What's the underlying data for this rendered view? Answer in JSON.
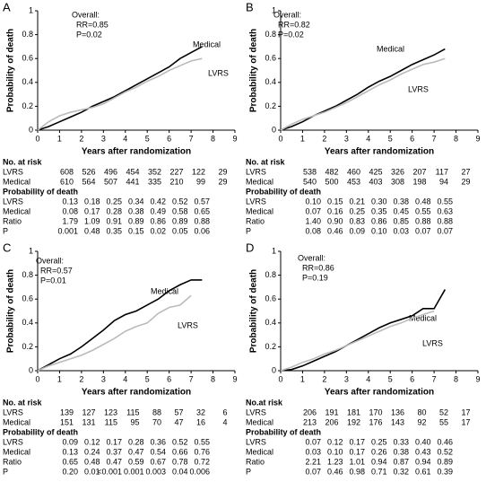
{
  "chart_data": [
    {
      "type": "line",
      "title": "A",
      "annotations": [
        "Overall:",
        "RR=0.85",
        "P=0.02"
      ],
      "xlabel": "Years after randomization",
      "ylabel": "Probability of death",
      "x": [
        0,
        0.5,
        1,
        1.5,
        2,
        2.5,
        3,
        3.5,
        4,
        4.5,
        5,
        5.5,
        6,
        6.5,
        7,
        7.5
      ],
      "series": [
        {
          "name": "Medical",
          "color": "#000000",
          "values": [
            0,
            0.03,
            0.07,
            0.11,
            0.15,
            0.2,
            0.24,
            0.28,
            0.33,
            0.38,
            0.43,
            0.48,
            0.53,
            0.6,
            0.65,
            0.7
          ]
        },
        {
          "name": "LVRS",
          "color": "#bbbbbb",
          "values": [
            0,
            0.07,
            0.12,
            0.15,
            0.17,
            0.19,
            0.22,
            0.27,
            0.32,
            0.36,
            0.41,
            0.45,
            0.5,
            0.54,
            0.58,
            0.6
          ]
        }
      ],
      "xlim": [
        0,
        9
      ],
      "ylim": [
        0,
        1
      ],
      "xticks": [
        0,
        1,
        2,
        3,
        4,
        5,
        6,
        7,
        8,
        9
      ],
      "yticks": [
        0,
        0.2,
        0.4,
        0.6,
        0.8,
        1
      ],
      "risk_table": {
        "title": "No. at risk",
        "rows": [
          {
            "label": "LVRS",
            "values": [
              "608",
              "526",
              "496",
              "454",
              "352",
              "227",
              "122",
              "29"
            ]
          },
          {
            "label": "Medical",
            "values": [
              "610",
              "564",
              "507",
              "441",
              "335",
              "210",
              "99",
              "29"
            ]
          }
        ]
      },
      "probability_table": {
        "title": "Probability of death",
        "rows": [
          {
            "label": "LVRS",
            "values": [
              "0.13",
              "0.18",
              "0.25",
              "0.34",
              "0.42",
              "0.52",
              "0.57"
            ]
          },
          {
            "label": "Medical",
            "values": [
              "0.08",
              "0.17",
              "0.28",
              "0.38",
              "0.49",
              "0.58",
              "0.65"
            ]
          },
          {
            "label": "Ratio",
            "values": [
              "1.79",
              "1.09",
              "0.91",
              "0.89",
              "0.86",
              "0.89",
              "0.88"
            ]
          },
          {
            "label": "P",
            "values": [
              "0.001",
              "0.48",
              "0.35",
              "0.15",
              "0.02",
              "0.05",
              "0.06"
            ]
          }
        ]
      }
    },
    {
      "type": "line",
      "title": "B",
      "annotations": [
        "Overall:",
        "RR=0.82",
        "P=0.02"
      ],
      "xlabel": "Years after randomization",
      "ylabel": "Probability of death",
      "x": [
        0,
        0.5,
        1,
        1.5,
        2,
        2.5,
        3,
        3.5,
        4,
        4.5,
        5,
        5.5,
        6,
        6.5,
        7,
        7.5
      ],
      "series": [
        {
          "name": "Medical",
          "color": "#000000",
          "values": [
            0,
            0.03,
            0.07,
            0.12,
            0.16,
            0.2,
            0.25,
            0.3,
            0.36,
            0.41,
            0.45,
            0.5,
            0.55,
            0.59,
            0.63,
            0.68
          ]
        },
        {
          "name": "LVRS",
          "color": "#bbbbbb",
          "values": [
            0,
            0.05,
            0.09,
            0.12,
            0.15,
            0.19,
            0.23,
            0.28,
            0.33,
            0.38,
            0.42,
            0.47,
            0.51,
            0.55,
            0.57,
            0.6
          ]
        }
      ],
      "xlim": [
        0,
        9
      ],
      "ylim": [
        0,
        1
      ],
      "xticks": [
        0,
        1,
        2,
        3,
        4,
        5,
        6,
        7,
        8,
        9
      ],
      "yticks": [
        0,
        0.2,
        0.4,
        0.6,
        0.8,
        1
      ],
      "risk_table": {
        "title": "No. at risk",
        "rows": [
          {
            "label": "LVRS",
            "values": [
              "538",
              "482",
              "460",
              "425",
              "326",
              "207",
              "117",
              "27"
            ]
          },
          {
            "label": "Medical",
            "values": [
              "540",
              "500",
              "453",
              "403",
              "308",
              "198",
              "94",
              "29"
            ]
          }
        ]
      },
      "probability_table": {
        "title": "Probability of death",
        "rows": [
          {
            "label": "LVRS",
            "values": [
              "0.10",
              "0.15",
              "0.21",
              "0.30",
              "0.38",
              "0.48",
              "0.55"
            ]
          },
          {
            "label": "Medical",
            "values": [
              "0.07",
              "0.16",
              "0.25",
              "0.35",
              "0.45",
              "0.55",
              "0.63"
            ]
          },
          {
            "label": "Ratio",
            "values": [
              "1.40",
              "0.90",
              "0.83",
              "0.86",
              "0.85",
              "0.88",
              "0.88"
            ]
          },
          {
            "label": "P",
            "values": [
              "0.08",
              "0.46",
              "0.09",
              "0.10",
              "0.03",
              "0.07",
              "0.07"
            ]
          }
        ]
      }
    },
    {
      "type": "line",
      "title": "C",
      "annotations": [
        "Overall:",
        "RR=0.57",
        "P=0.01"
      ],
      "xlabel": "Years after randomization",
      "ylabel": "Probability of death",
      "x": [
        0,
        0.5,
        1,
        1.5,
        2,
        2.5,
        3,
        3.5,
        4,
        4.5,
        5,
        5.5,
        6,
        6.5,
        7,
        7.5
      ],
      "series": [
        {
          "name": "Medical",
          "color": "#000000",
          "values": [
            0,
            0.05,
            0.1,
            0.14,
            0.2,
            0.27,
            0.34,
            0.42,
            0.47,
            0.5,
            0.55,
            0.6,
            0.67,
            0.72,
            0.76,
            0.76
          ]
        },
        {
          "name": "LVRS",
          "color": "#bbbbbb",
          "values": [
            0,
            0.04,
            0.07,
            0.1,
            0.13,
            0.17,
            0.22,
            0.27,
            0.33,
            0.37,
            0.4,
            0.48,
            0.53,
            0.55,
            0.63,
            null
          ]
        }
      ],
      "xlim": [
        0,
        9
      ],
      "ylim": [
        0,
        1
      ],
      "xticks": [
        0,
        1,
        2,
        3,
        4,
        5,
        6,
        7,
        8,
        9
      ],
      "yticks": [
        0,
        0.2,
        0.4,
        0.6,
        0.8,
        1
      ],
      "risk_table": {
        "title": "No. at risk",
        "rows": [
          {
            "label": "LVRS",
            "values": [
              "139",
              "127",
              "123",
              "115",
              "88",
              "57",
              "32",
              "6"
            ]
          },
          {
            "label": "Medical",
            "values": [
              "151",
              "131",
              "115",
              "95",
              "70",
              "47",
              "16",
              "4"
            ]
          }
        ]
      },
      "probability_table": {
        "title": "Probability of death",
        "rows": [
          {
            "label": "LVRS",
            "values": [
              "0.09",
              "0.12",
              "0.17",
              "0.28",
              "0.36",
              "0.52",
              "0.55"
            ]
          },
          {
            "label": "Medical",
            "values": [
              "0.13",
              "0.24",
              "0.37",
              "0.47",
              "0.54",
              "0.66",
              "0.76"
            ]
          },
          {
            "label": "Ratio",
            "values": [
              "0.65",
              "0.48",
              "0.47",
              "0.59",
              "0.67",
              "0.78",
              "0.72"
            ]
          },
          {
            "label": "P",
            "values": [
              "0.20",
              "0.01",
              "<0.001",
              "0.001",
              "0.003",
              "0.04",
              "0.006"
            ]
          }
        ]
      }
    },
    {
      "type": "line",
      "title": "D",
      "annotations": [
        "Overall:",
        "RR=0.86",
        "P=0.19"
      ],
      "xlabel": "Years after randomization",
      "ylabel": "Probability of death",
      "x": [
        0,
        0.5,
        1,
        1.5,
        2,
        2.5,
        3,
        3.5,
        4,
        4.5,
        5,
        5.5,
        6,
        6.5,
        7,
        7.5
      ],
      "series": [
        {
          "name": "Medical",
          "color": "#000000",
          "values": [
            0,
            0.01,
            0.04,
            0.08,
            0.12,
            0.16,
            0.21,
            0.26,
            0.31,
            0.36,
            0.4,
            0.43,
            0.46,
            0.52,
            0.52,
            0.68
          ]
        },
        {
          "name": "LVRS",
          "color": "#bbbbbb",
          "values": [
            0,
            0.03,
            0.07,
            0.1,
            0.14,
            0.17,
            0.21,
            0.25,
            0.29,
            0.33,
            0.37,
            0.4,
            0.44,
            0.47,
            0.5,
            null
          ]
        }
      ],
      "xlim": [
        0,
        9
      ],
      "ylim": [
        0,
        1
      ],
      "xticks": [
        0,
        1,
        2,
        3,
        4,
        5,
        6,
        7,
        8,
        9
      ],
      "yticks": [
        0,
        0.2,
        0.4,
        0.6,
        0.8,
        1
      ],
      "risk_table": {
        "title": "No.at risk",
        "rows": [
          {
            "label": "LVRS",
            "values": [
              "206",
              "191",
              "181",
              "170",
              "136",
              "80",
              "52",
              "17"
            ]
          },
          {
            "label": "Medical",
            "values": [
              "213",
              "206",
              "192",
              "176",
              "143",
              "92",
              "55",
              "17"
            ]
          }
        ]
      },
      "probability_table": {
        "title": "Probability of death",
        "rows": [
          {
            "label": "LVRS",
            "values": [
              "0.07",
              "0.12",
              "0.17",
              "0.25",
              "0.33",
              "0.40",
              "0.46"
            ]
          },
          {
            "label": "Medical",
            "values": [
              "0.03",
              "0.10",
              "0.17",
              "0.26",
              "0.38",
              "0.43",
              "0.52"
            ]
          },
          {
            "label": "Ratio",
            "values": [
              "2.21",
              "1.23",
              "1.01",
              "0.94",
              "0.87",
              "0.94",
              "0.89"
            ]
          },
          {
            "label": "P",
            "values": [
              "0.07",
              "0.46",
              "0.98",
              "0.71",
              "0.32",
              "0.61",
              "0.39"
            ]
          }
        ]
      }
    }
  ]
}
